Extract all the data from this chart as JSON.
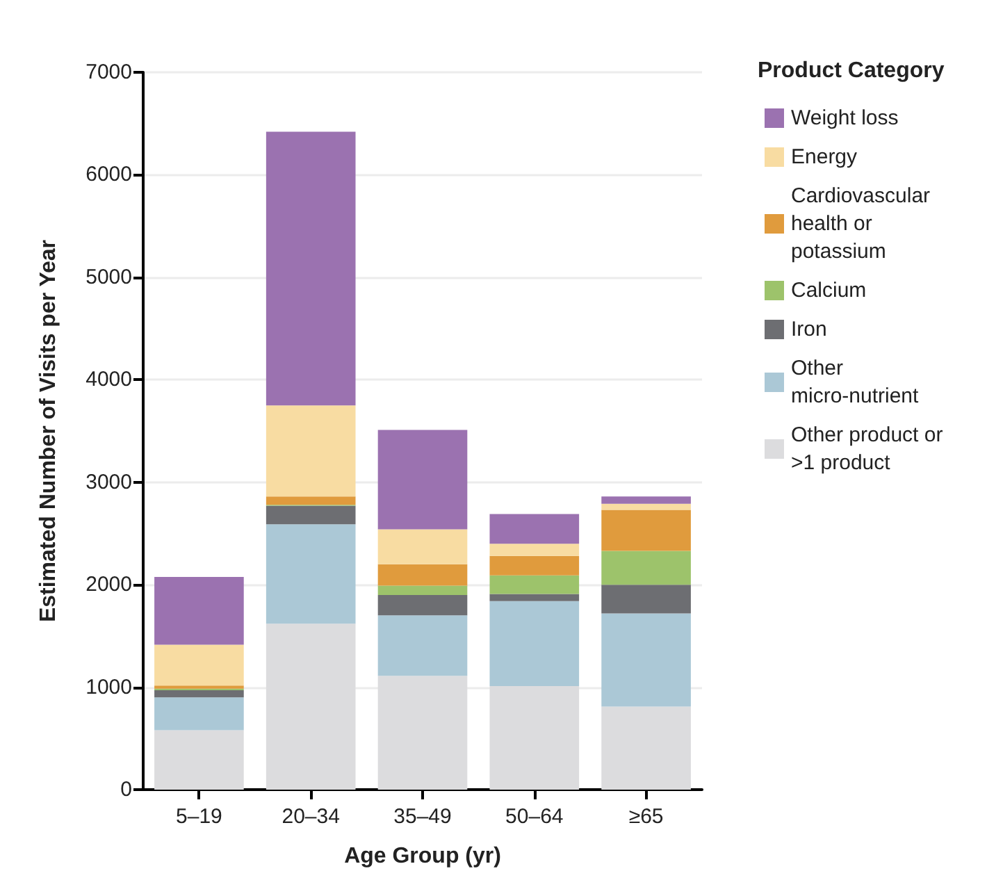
{
  "chart_data": {
    "type": "bar",
    "stacked": true,
    "xlabel": "Age Group (yr)",
    "ylabel": "Estimated Number of Visits per Year",
    "legend_title": "Product Category",
    "categories": [
      "5–19",
      "20–34",
      "35–49",
      "50–64",
      "≥65"
    ],
    "series": [
      {
        "name": "Other product or >1 product",
        "color": "#dcdcde",
        "values": [
          580,
          1620,
          1110,
          1010,
          810
        ]
      },
      {
        "name": "Other micro-nutrient",
        "color": "#abc8d6",
        "values": [
          320,
          970,
          590,
          830,
          910
        ]
      },
      {
        "name": "Iron",
        "color": "#6d6e72",
        "values": [
          70,
          180,
          200,
          70,
          280
        ]
      },
      {
        "name": "Calcium",
        "color": "#9dc36b",
        "values": [
          15,
          10,
          90,
          180,
          330
        ]
      },
      {
        "name": "Cardiovascular health or potassium",
        "color": "#e09b3d",
        "values": [
          30,
          80,
          210,
          190,
          400
        ]
      },
      {
        "name": "Energy",
        "color": "#f8dca2",
        "values": [
          400,
          890,
          340,
          120,
          60
        ]
      },
      {
        "name": "Weight loss",
        "color": "#9b72b0",
        "values": [
          660,
          2670,
          970,
          290,
          70
        ]
      }
    ],
    "ylim": [
      0,
      7000
    ],
    "yticks": [
      0,
      1000,
      2000,
      3000,
      4000,
      5000,
      6000,
      7000
    ],
    "grid": "y",
    "legend": "right"
  }
}
